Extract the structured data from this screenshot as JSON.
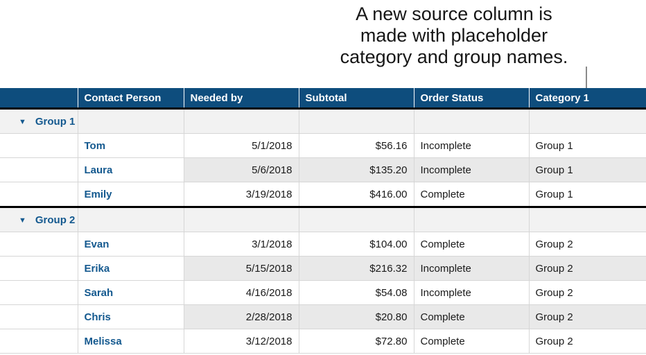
{
  "callout": {
    "lines": [
      "A new source column is",
      "made with placeholder",
      "category and group names."
    ]
  },
  "table": {
    "disclosure_icon": "▼",
    "columns": [
      {
        "label": ""
      },
      {
        "label": "Contact Person"
      },
      {
        "label": "Needed by"
      },
      {
        "label": "Subtotal"
      },
      {
        "label": "Order Status"
      },
      {
        "label": "Category 1"
      }
    ],
    "groups": [
      {
        "name": "Group 1",
        "rows": [
          {
            "contact": "Tom",
            "needed": "5/1/2018",
            "subtotal": "$56.16",
            "status": "Incomplete",
            "category": "Group 1"
          },
          {
            "contact": "Laura",
            "needed": "5/6/2018",
            "subtotal": "$135.20",
            "status": "Incomplete",
            "category": "Group 1"
          },
          {
            "contact": "Emily",
            "needed": "3/19/2018",
            "subtotal": "$416.00",
            "status": "Complete",
            "category": "Group 1"
          }
        ]
      },
      {
        "name": "Group 2",
        "rows": [
          {
            "contact": "Evan",
            "needed": "3/1/2018",
            "subtotal": "$104.00",
            "status": "Complete",
            "category": "Group 2"
          },
          {
            "contact": "Erika",
            "needed": "5/15/2018",
            "subtotal": "$216.32",
            "status": "Incomplete",
            "category": "Group 2"
          },
          {
            "contact": "Sarah",
            "needed": "4/16/2018",
            "subtotal": "$54.08",
            "status": "Incomplete",
            "category": "Group 2"
          },
          {
            "contact": "Chris",
            "needed": "2/28/2018",
            "subtotal": "$20.80",
            "status": "Complete",
            "category": "Group 2"
          },
          {
            "contact": "Melissa",
            "needed": "3/12/2018",
            "subtotal": "$72.80",
            "status": "Complete",
            "category": "Group 2"
          }
        ]
      }
    ]
  },
  "colors": {
    "header_bg": "#0e4d7d",
    "accent_blue": "#14598f",
    "row_alt_bg": "#e9e9e9",
    "group_row_bg": "#f2f2f2",
    "border_light": "#d6d6d6",
    "border_heavy": "#000000",
    "callout_line": "#8a8a8a"
  }
}
